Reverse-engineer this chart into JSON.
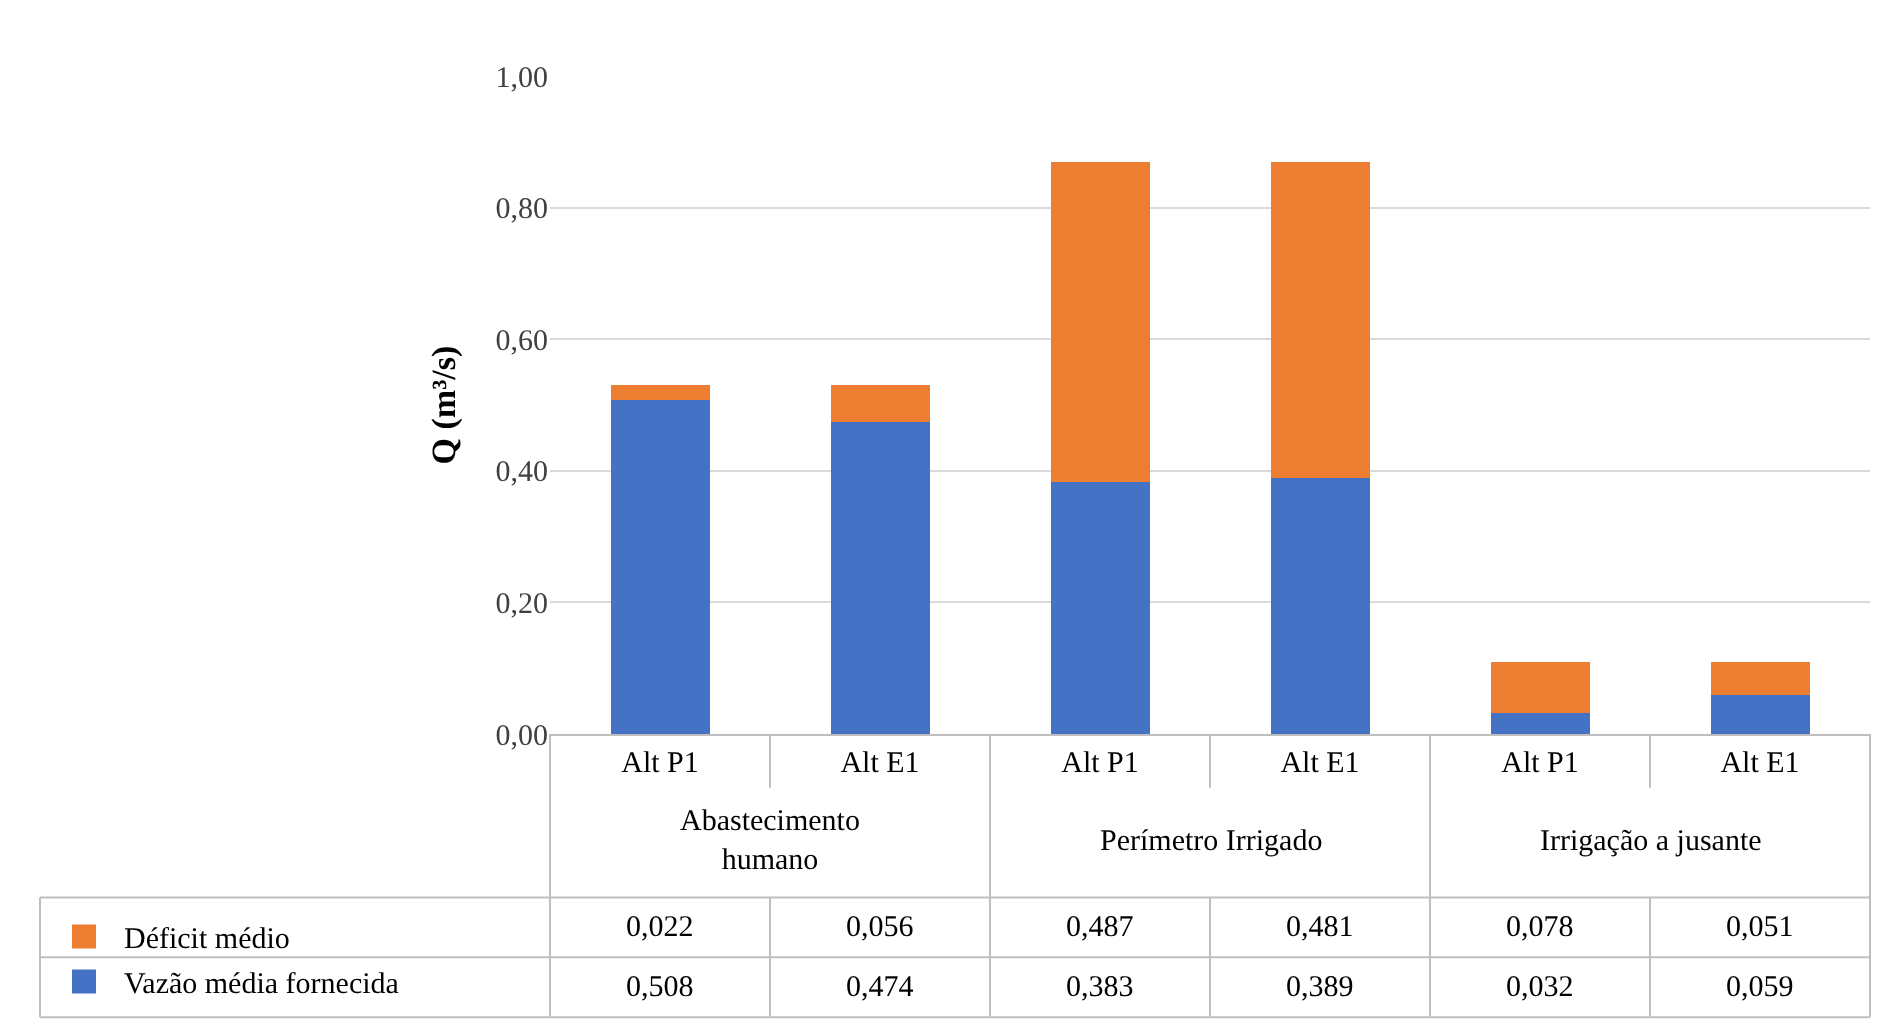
{
  "chart_data": {
    "type": "bar",
    "stacked": true,
    "ylabel": "Q (m³/s)",
    "categories": [
      "Alt P1",
      "Alt E1",
      "Alt P1",
      "Alt E1",
      "Alt P1",
      "Alt E1"
    ],
    "annotations": [
      "Abastecimento humano",
      "Perímetro Irrigado",
      "Irrigação a jusante"
    ],
    "series": [
      {
        "name": "Vazão média fornecida",
        "color": "#4472c4",
        "values": [
          0.508,
          0.474,
          0.383,
          0.389,
          0.032,
          0.059
        ],
        "value_labels": [
          "0,508",
          "0,474",
          "0,383",
          "0,389",
          "0,032",
          "0,059"
        ]
      },
      {
        "name": "Déficit médio",
        "color": "#ed7d31",
        "values": [
          0.022,
          0.056,
          0.487,
          0.481,
          0.078,
          0.051
        ],
        "value_labels": [
          "0,022",
          "0,056",
          "0,487",
          "0,481",
          "0,078",
          "0,051"
        ]
      }
    ],
    "ylim": [
      0,
      1
    ],
    "yticks": [
      {
        "value": 0,
        "label": "0,00"
      },
      {
        "value": 0.2,
        "label": "0,20"
      },
      {
        "value": 0.4,
        "label": "0,40"
      },
      {
        "value": 0.6,
        "label": "0,60"
      },
      {
        "value": 0.8,
        "label": "0,80"
      },
      {
        "value": 1,
        "label": "1,00"
      }
    ],
    "grid": "y",
    "legend": "bottom"
  }
}
